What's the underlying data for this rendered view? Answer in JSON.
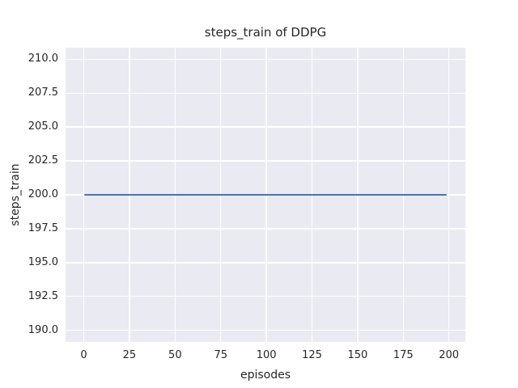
{
  "chart_data": {
    "type": "line",
    "title": "steps_train of DDPG",
    "xlabel": "episodes",
    "ylabel": "steps_train",
    "x_tick_values": [
      0,
      25,
      50,
      75,
      100,
      125,
      150,
      175,
      200
    ],
    "x_tick_labels": [
      "0",
      "25",
      "50",
      "75",
      "100",
      "125",
      "150",
      "175",
      "200"
    ],
    "y_tick_values": [
      190.0,
      192.5,
      195.0,
      197.5,
      200.0,
      202.5,
      205.0,
      207.5,
      210.0
    ],
    "y_tick_labels": [
      "190.0",
      "192.5",
      "195.0",
      "197.5",
      "200.0",
      "202.5",
      "205.0",
      "207.5",
      "210.0"
    ],
    "xlim": [
      -10,
      209
    ],
    "ylim": [
      189.15,
      210.85
    ],
    "grid": true,
    "legend": false,
    "plot_background_color": "#eaeaf2",
    "grid_color": "#ffffff",
    "text_color": "#262626",
    "series": [
      {
        "name": "steps_train",
        "color": "#4c72b0",
        "x": [
          0,
          199
        ],
        "y": [
          200,
          200
        ]
      }
    ]
  }
}
